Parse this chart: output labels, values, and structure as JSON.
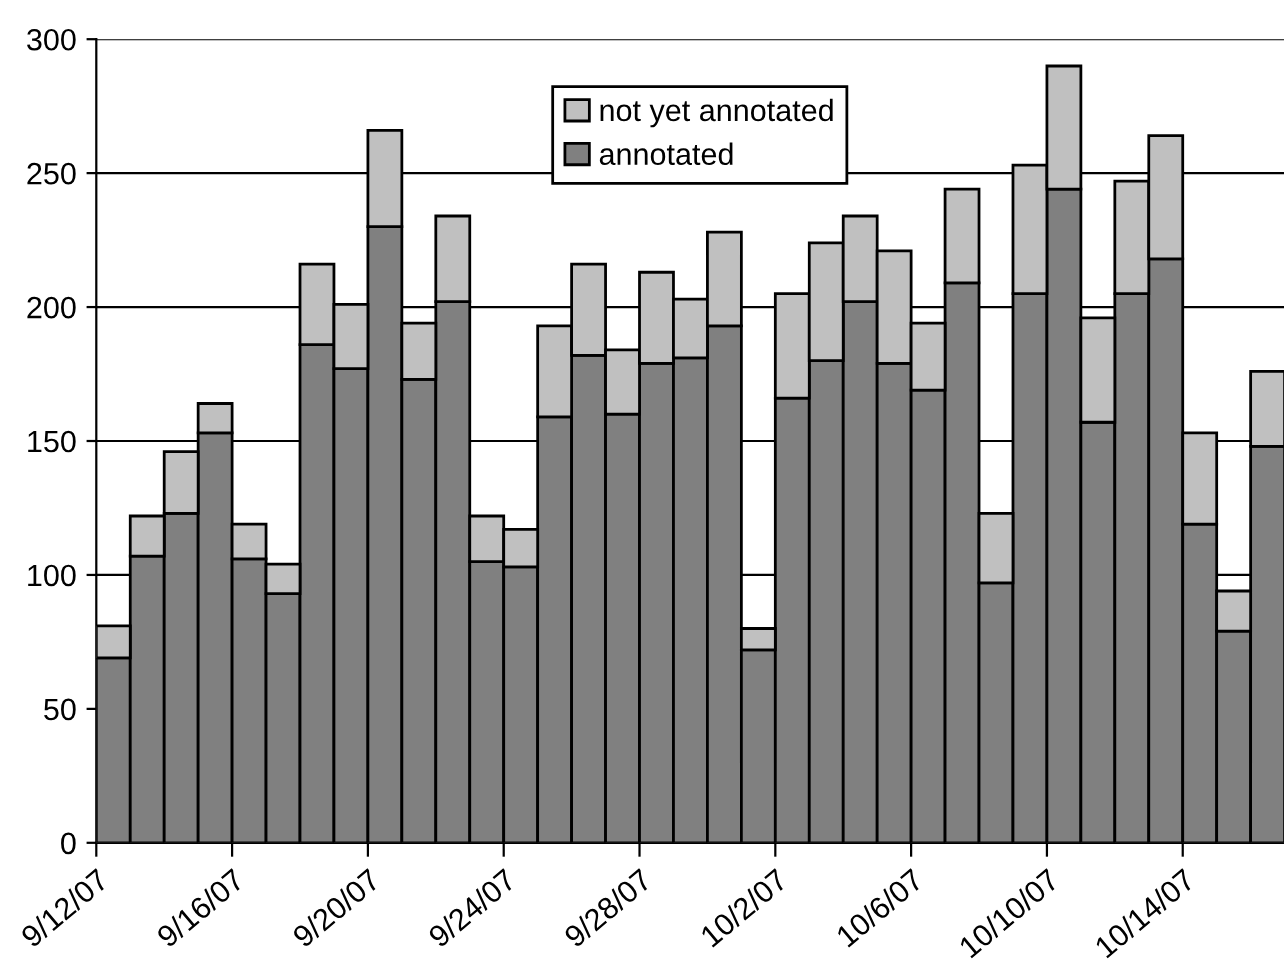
{
  "chart_data": {
    "type": "bar",
    "stacked": true,
    "categories": [
      "9/12/07",
      null,
      null,
      null,
      "9/16/07",
      null,
      null,
      null,
      "9/20/07",
      null,
      null,
      null,
      "9/24/07",
      null,
      null,
      null,
      "9/28/07",
      null,
      null,
      null,
      "10/2/07",
      null,
      null,
      null,
      "10/6/07",
      null,
      null,
      null,
      "10/10/07",
      null,
      null,
      null,
      "10/14/07",
      null,
      null
    ],
    "series": [
      {
        "name": "annotated",
        "color": "#808080",
        "values": [
          69,
          107,
          123,
          153,
          106,
          93,
          186,
          177,
          230,
          173,
          202,
          105,
          103,
          159,
          182,
          160,
          179,
          181,
          193,
          72,
          166,
          180,
          202,
          179,
          169,
          209,
          97,
          205,
          244,
          157,
          205,
          218,
          119,
          79,
          148
        ]
      },
      {
        "name": "not yet annotated",
        "color": "#c0c0c0",
        "values": [
          12,
          15,
          23,
          11,
          13,
          11,
          30,
          24,
          36,
          21,
          32,
          17,
          14,
          34,
          34,
          24,
          34,
          22,
          35,
          8,
          39,
          44,
          32,
          42,
          25,
          35,
          26,
          48,
          46,
          39,
          42,
          46,
          34,
          15,
          28
        ]
      }
    ],
    "ylim": [
      0,
      300
    ],
    "yticks": [
      0,
      50,
      100,
      150,
      200,
      250,
      300
    ],
    "grid": "y",
    "legend": "top"
  }
}
